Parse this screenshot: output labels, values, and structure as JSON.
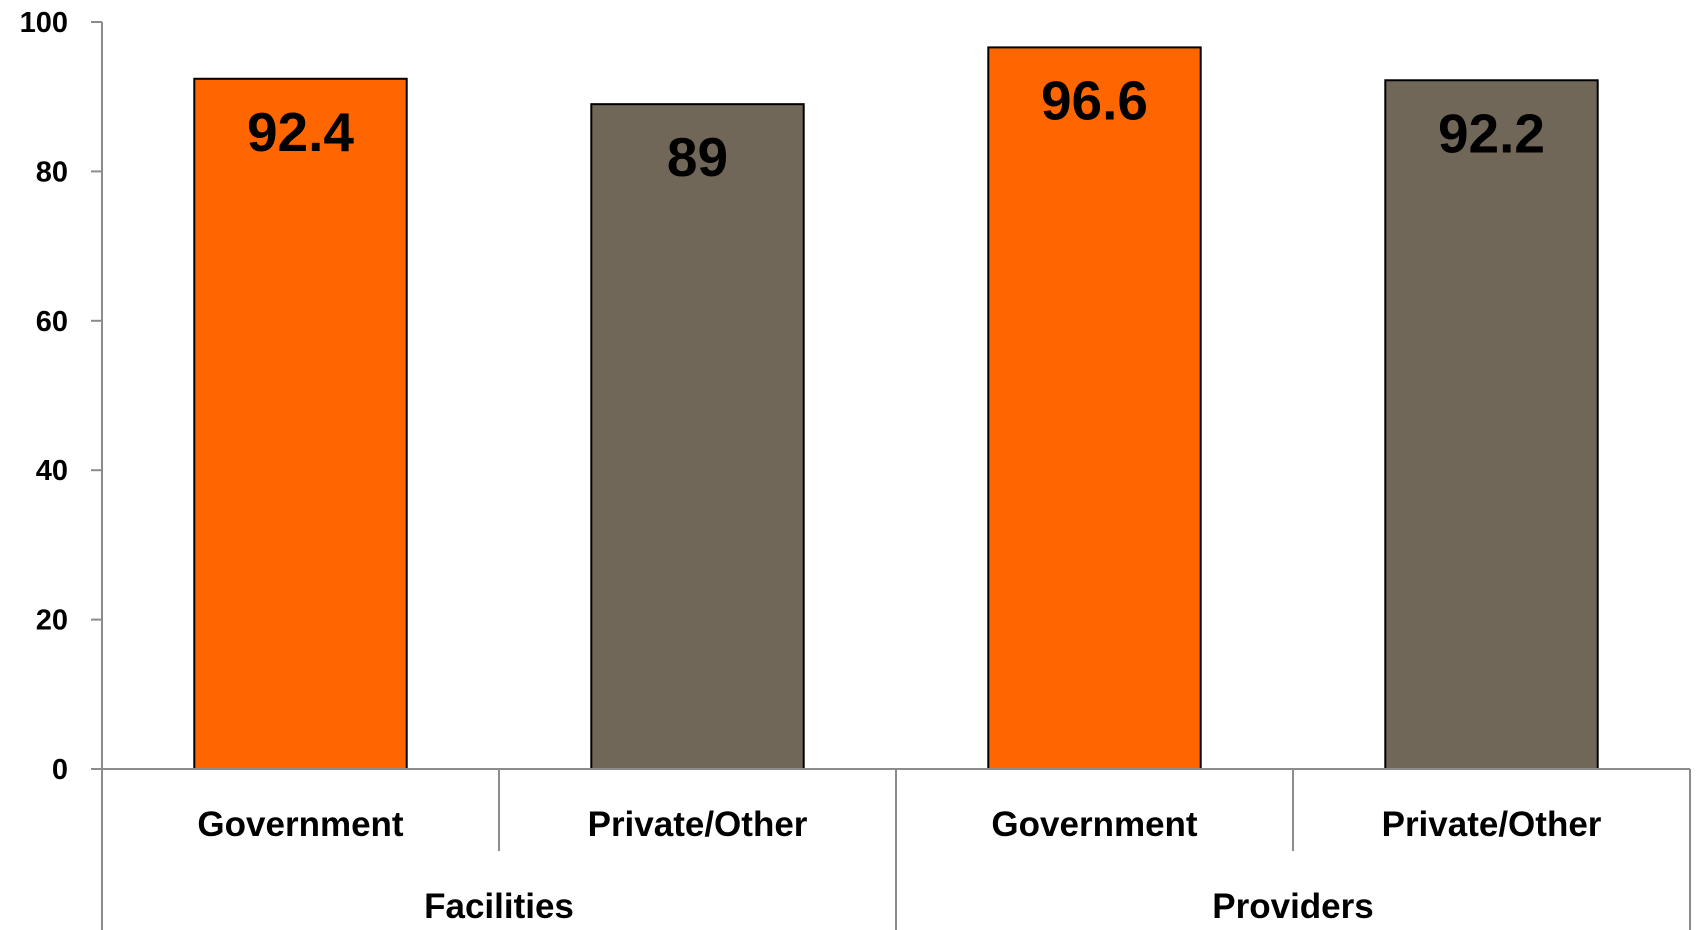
{
  "chart_data": {
    "type": "bar",
    "ylim": [
      0,
      100
    ],
    "yticks": [
      0,
      20,
      40,
      60,
      80,
      100
    ],
    "grid": false,
    "groups": [
      {
        "label": "Facilities",
        "bars": [
          {
            "label": "Government",
            "value": 92.4,
            "value_label": "92.4",
            "color": "#FF6600"
          },
          {
            "label": "Private/Other",
            "value": 89,
            "value_label": "89",
            "color": "#706759"
          }
        ]
      },
      {
        "label": "Providers",
        "bars": [
          {
            "label": "Government",
            "value": 96.6,
            "value_label": "96.6",
            "color": "#FF6600"
          },
          {
            "label": "Private/Other",
            "value": 92.2,
            "value_label": "92.2",
            "color": "#706759"
          }
        ]
      }
    ]
  }
}
